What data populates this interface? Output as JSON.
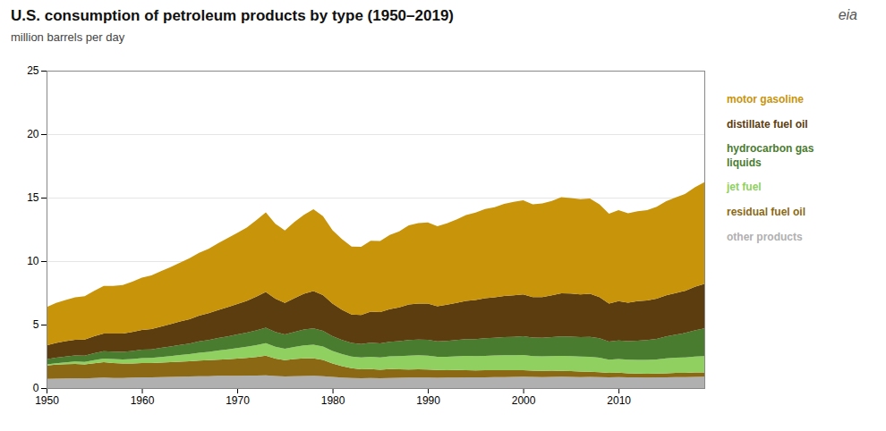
{
  "chart_data": {
    "type": "area",
    "stacked": true,
    "title": "U.S. consumption of petroleum products by type (1950–2019)",
    "subtitle": "million barrels per day",
    "annotations": [
      "eia"
    ],
    "x": [
      1950,
      1951,
      1952,
      1953,
      1954,
      1955,
      1956,
      1957,
      1958,
      1959,
      1960,
      1961,
      1962,
      1963,
      1964,
      1965,
      1966,
      1967,
      1968,
      1969,
      1970,
      1971,
      1972,
      1973,
      1974,
      1975,
      1976,
      1977,
      1978,
      1979,
      1980,
      1981,
      1982,
      1983,
      1984,
      1985,
      1986,
      1987,
      1988,
      1989,
      1990,
      1991,
      1992,
      1993,
      1994,
      1995,
      1996,
      1997,
      1998,
      1999,
      2000,
      2001,
      2002,
      2003,
      2004,
      2005,
      2006,
      2007,
      2008,
      2009,
      2010,
      2011,
      2012,
      2013,
      2014,
      2015,
      2016,
      2017,
      2018,
      2019
    ],
    "series": [
      {
        "name": "other products",
        "color": "#b0b0b0",
        "values": [
          0.72,
          0.74,
          0.76,
          0.78,
          0.76,
          0.8,
          0.82,
          0.8,
          0.8,
          0.82,
          0.84,
          0.85,
          0.87,
          0.88,
          0.9,
          0.91,
          0.93,
          0.94,
          0.96,
          0.97,
          0.97,
          0.98,
          0.99,
          1.0,
          0.95,
          0.92,
          0.94,
          0.95,
          0.96,
          0.93,
          0.88,
          0.83,
          0.8,
          0.78,
          0.8,
          0.78,
          0.8,
          0.81,
          0.82,
          0.83,
          0.82,
          0.81,
          0.82,
          0.83,
          0.84,
          0.84,
          0.85,
          0.86,
          0.87,
          0.88,
          0.89,
          0.88,
          0.87,
          0.88,
          0.89,
          0.88,
          0.87,
          0.88,
          0.86,
          0.84,
          0.86,
          0.85,
          0.84,
          0.83,
          0.84,
          0.85,
          0.86,
          0.87,
          0.88,
          0.89
        ]
      },
      {
        "name": "residual fuel oil",
        "color": "#8b6914",
        "values": [
          1.05,
          1.1,
          1.12,
          1.13,
          1.1,
          1.16,
          1.22,
          1.18,
          1.14,
          1.12,
          1.14,
          1.12,
          1.14,
          1.16,
          1.18,
          1.2,
          1.24,
          1.26,
          1.28,
          1.3,
          1.35,
          1.4,
          1.45,
          1.55,
          1.38,
          1.28,
          1.34,
          1.4,
          1.38,
          1.28,
          1.06,
          0.9,
          0.76,
          0.7,
          0.7,
          0.66,
          0.7,
          0.67,
          0.65,
          0.65,
          0.65,
          0.62,
          0.59,
          0.59,
          0.57,
          0.55,
          0.55,
          0.55,
          0.53,
          0.52,
          0.52,
          0.5,
          0.49,
          0.49,
          0.47,
          0.45,
          0.43,
          0.41,
          0.39,
          0.35,
          0.35,
          0.32,
          0.3,
          0.3,
          0.3,
          0.32,
          0.33,
          0.33,
          0.35,
          0.35
        ]
      },
      {
        "name": "jet fuel",
        "color": "#90d060",
        "values": [
          0.1,
          0.12,
          0.15,
          0.18,
          0.2,
          0.24,
          0.28,
          0.3,
          0.32,
          0.35,
          0.38,
          0.4,
          0.44,
          0.48,
          0.52,
          0.56,
          0.62,
          0.66,
          0.72,
          0.78,
          0.84,
          0.88,
          0.94,
          0.98,
          0.93,
          0.9,
          0.96,
          1.02,
          1.08,
          1.06,
          0.99,
          0.95,
          0.93,
          0.93,
          0.97,
          0.97,
          1.0,
          1.03,
          1.08,
          1.1,
          1.09,
          1.03,
          1.06,
          1.08,
          1.12,
          1.12,
          1.14,
          1.16,
          1.18,
          1.18,
          1.2,
          1.14,
          1.14,
          1.15,
          1.17,
          1.18,
          1.18,
          1.18,
          1.15,
          1.05,
          1.08,
          1.06,
          1.08,
          1.09,
          1.11,
          1.17,
          1.2,
          1.22,
          1.26,
          1.28
        ]
      },
      {
        "name": "hydrocarbon gas\nliquids",
        "color": "#4a7c2f",
        "values": [
          0.4,
          0.44,
          0.46,
          0.48,
          0.5,
          0.54,
          0.58,
          0.59,
          0.6,
          0.63,
          0.66,
          0.68,
          0.72,
          0.76,
          0.8,
          0.84,
          0.89,
          0.93,
          0.98,
          1.02,
          1.06,
          1.1,
          1.16,
          1.22,
          1.16,
          1.12,
          1.18,
          1.24,
          1.28,
          1.23,
          1.16,
          1.1,
          1.06,
          1.06,
          1.11,
          1.11,
          1.14,
          1.18,
          1.23,
          1.24,
          1.25,
          1.22,
          1.25,
          1.28,
          1.32,
          1.35,
          1.38,
          1.4,
          1.44,
          1.46,
          1.48,
          1.46,
          1.46,
          1.5,
          1.54,
          1.54,
          1.54,
          1.56,
          1.52,
          1.42,
          1.46,
          1.46,
          1.52,
          1.56,
          1.62,
          1.72,
          1.82,
          1.92,
          2.06,
          2.18
        ]
      },
      {
        "name": "distillate fuel oil",
        "color": "#5c3d10",
        "values": [
          1.1,
          1.16,
          1.2,
          1.24,
          1.26,
          1.34,
          1.4,
          1.42,
          1.44,
          1.5,
          1.56,
          1.6,
          1.68,
          1.76,
          1.84,
          1.92,
          2.02,
          2.1,
          2.2,
          2.3,
          2.4,
          2.5,
          2.66,
          2.82,
          2.62,
          2.48,
          2.66,
          2.82,
          2.94,
          2.82,
          2.56,
          2.38,
          2.24,
          2.28,
          2.44,
          2.46,
          2.58,
          2.66,
          2.8,
          2.84,
          2.84,
          2.76,
          2.84,
          2.92,
          3.02,
          3.08,
          3.16,
          3.18,
          3.24,
          3.26,
          3.28,
          3.18,
          3.2,
          3.28,
          3.4,
          3.4,
          3.36,
          3.4,
          3.24,
          3.0,
          3.1,
          3.04,
          3.1,
          3.12,
          3.18,
          3.24,
          3.28,
          3.32,
          3.42,
          3.5
        ]
      },
      {
        "name": "motor gasoline",
        "color": "#c8940a",
        "values": [
          3.0,
          3.14,
          3.24,
          3.34,
          3.42,
          3.58,
          3.74,
          3.76,
          3.82,
          3.96,
          4.12,
          4.22,
          4.36,
          4.48,
          4.64,
          4.8,
          4.96,
          5.08,
          5.26,
          5.44,
          5.6,
          5.78,
          6.02,
          6.26,
          5.9,
          5.72,
          6.0,
          6.22,
          6.44,
          6.22,
          5.78,
          5.56,
          5.36,
          5.38,
          5.58,
          5.6,
          5.84,
          6.0,
          6.24,
          6.34,
          6.4,
          6.3,
          6.42,
          6.58,
          6.76,
          6.88,
          7.02,
          7.1,
          7.24,
          7.36,
          7.42,
          7.32,
          7.38,
          7.44,
          7.56,
          7.52,
          7.5,
          7.5,
          7.32,
          7.08,
          7.16,
          7.04,
          7.08,
          7.12,
          7.22,
          7.42,
          7.52,
          7.64,
          7.84,
          8.02
        ]
      }
    ],
    "xlim": [
      1950,
      2019
    ],
    "xticks": [
      1950,
      1960,
      1970,
      1980,
      1990,
      2000,
      2010
    ],
    "ylim": [
      0,
      25
    ],
    "yticks": [
      0,
      5,
      10,
      15,
      20,
      25
    ],
    "grid": true
  }
}
